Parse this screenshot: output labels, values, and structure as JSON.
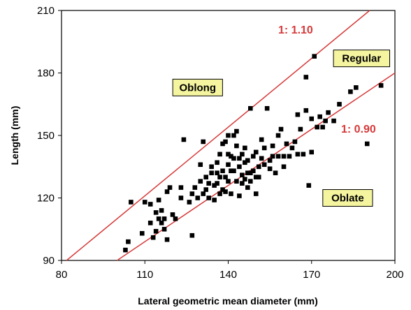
{
  "chart_data": {
    "type": "scatter",
    "title": "",
    "xlabel": "Lateral geometric mean diameter (mm)",
    "ylabel": "Length (mm)",
    "xlim": [
      80,
      200
    ],
    "ylim": [
      90,
      210
    ],
    "xticks": [
      "80",
      "110",
      "140",
      "170",
      "200"
    ],
    "yticks": [
      "90",
      "120",
      "150",
      "180",
      "210"
    ],
    "grid": false,
    "legend": "none",
    "colors": {
      "points": "#000000",
      "lines": "#d63a3a",
      "box_fill": "#f5f5a0",
      "box_border": "#000000"
    },
    "lines": [
      {
        "label": "1: 1.10",
        "slope": 1.1,
        "x": [
          80,
          200
        ]
      },
      {
        "label": "1: 0.90",
        "slope": 0.9,
        "x": [
          80,
          200
        ]
      }
    ],
    "regions": [
      {
        "label": "Oblong",
        "x": 129,
        "y": 173
      },
      {
        "label": "Regular",
        "x": 188,
        "y": 187
      },
      {
        "label": "Oblate",
        "x": 183,
        "y": 120
      }
    ],
    "points": {
      "x": [
        103,
        104,
        105,
        109,
        110,
        112,
        112,
        113,
        114,
        114,
        115,
        115,
        116,
        116,
        117,
        117,
        118,
        118,
        119,
        120,
        121,
        123,
        123,
        124,
        126,
        127,
        127,
        128,
        129,
        130,
        130,
        131,
        131,
        132,
        132,
        133,
        133,
        134,
        134,
        135,
        135,
        136,
        136,
        136,
        137,
        137,
        137,
        138,
        138,
        138,
        139,
        139,
        139,
        140,
        140,
        140,
        140,
        141,
        141,
        141,
        142,
        142,
        142,
        143,
        143,
        143,
        144,
        144,
        144,
        145,
        145,
        145,
        146,
        146,
        146,
        147,
        147,
        147,
        148,
        148,
        148,
        149,
        149,
        150,
        150,
        150,
        151,
        151,
        152,
        152,
        153,
        153,
        154,
        155,
        155,
        156,
        156,
        157,
        158,
        158,
        159,
        160,
        160,
        161,
        162,
        163,
        164,
        165,
        165,
        166,
        167,
        168,
        168,
        169,
        170,
        170,
        171,
        172,
        173,
        174,
        175,
        176,
        178,
        180,
        184,
        186,
        190,
        195,
        195
      ],
      "y": [
        95,
        99,
        118,
        103,
        118,
        108,
        117,
        101,
        104,
        113,
        110,
        119,
        108,
        114,
        105,
        110,
        123,
        100,
        125,
        112,
        110,
        125,
        120,
        148,
        118,
        122,
        102,
        125,
        120,
        136,
        128,
        122,
        147,
        124,
        130,
        120,
        127,
        135,
        132,
        126,
        119,
        132,
        137,
        127,
        130,
        122,
        141,
        146,
        124,
        133,
        130,
        147,
        123,
        128,
        136,
        141,
        150,
        140,
        133,
        122,
        150,
        139,
        133,
        145,
        128,
        152,
        121,
        139,
        135,
        131,
        127,
        141,
        137,
        129,
        144,
        125,
        132,
        138,
        132,
        128,
        163,
        133,
        140,
        122,
        130,
        142,
        135,
        130,
        139,
        148,
        144,
        136,
        163,
        134,
        138,
        140,
        145,
        132,
        140,
        150,
        153,
        140,
        135,
        146,
        140,
        144,
        147,
        160,
        141,
        153,
        141,
        178,
        162,
        126,
        158,
        142,
        188,
        154,
        159,
        154,
        157,
        161,
        157,
        165,
        171,
        173,
        146,
        184,
        174
      ]
    }
  }
}
